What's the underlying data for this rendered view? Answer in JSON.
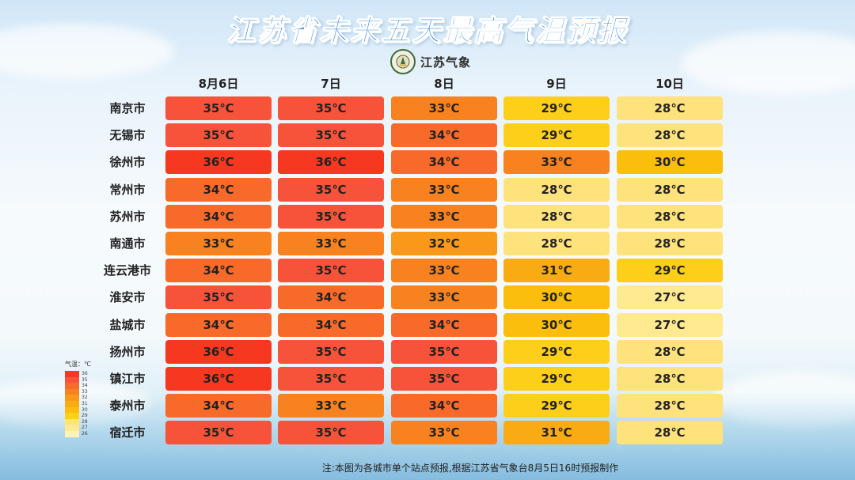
{
  "title": "江苏省未来五天最高气温预报",
  "logo_text": "江苏气象",
  "days": [
    "8月6日",
    "7日",
    "8日",
    "9日",
    "10日"
  ],
  "rows": [
    {
      "city": "南京市",
      "temps": [
        "35℃",
        "35℃",
        "33℃",
        "29℃",
        "28℃"
      ]
    },
    {
      "city": "无锡市",
      "temps": [
        "35℃",
        "35℃",
        "34℃",
        "29℃",
        "28℃"
      ]
    },
    {
      "city": "徐州市",
      "temps": [
        "36℃",
        "36℃",
        "34℃",
        "33℃",
        "30℃"
      ]
    },
    {
      "city": "常州市",
      "temps": [
        "34℃",
        "35℃",
        "33℃",
        "28℃",
        "28℃"
      ]
    },
    {
      "city": "苏州市",
      "temps": [
        "34℃",
        "35℃",
        "33℃",
        "28℃",
        "28℃"
      ]
    },
    {
      "city": "南通市",
      "temps": [
        "33℃",
        "33℃",
        "32℃",
        "28℃",
        "28℃"
      ]
    },
    {
      "city": "连云港市",
      "temps": [
        "34℃",
        "35℃",
        "33℃",
        "31℃",
        "29℃"
      ]
    },
    {
      "city": "淮安市",
      "temps": [
        "35℃",
        "34℃",
        "33℃",
        "30℃",
        "27℃"
      ]
    },
    {
      "city": "盐城市",
      "temps": [
        "34℃",
        "34℃",
        "34℃",
        "30℃",
        "27℃"
      ]
    },
    {
      "city": "扬州市",
      "temps": [
        "36℃",
        "35℃",
        "35℃",
        "29℃",
        "28℃"
      ]
    },
    {
      "city": "镇江市",
      "temps": [
        "36℃",
        "35℃",
        "35℃",
        "29℃",
        "28℃"
      ]
    },
    {
      "city": "泰州市",
      "temps": [
        "34℃",
        "33℃",
        "34℃",
        "29℃",
        "28℃"
      ]
    },
    {
      "city": "宿迁市",
      "temps": [
        "35℃",
        "35℃",
        "33℃",
        "31℃",
        "28℃"
      ]
    }
  ],
  "legend": {
    "title": "气温：℃",
    "levels": [
      {
        "label": "36",
        "color": "#f5381f"
      },
      {
        "label": "35",
        "color": "#f7533a"
      },
      {
        "label": "34",
        "color": "#f86a2a"
      },
      {
        "label": "33",
        "color": "#f7821f"
      },
      {
        "label": "32",
        "color": "#f8991a"
      },
      {
        "label": "31",
        "color": "#f9ab14"
      },
      {
        "label": "30",
        "color": "#fbbe0c"
      },
      {
        "label": "29",
        "color": "#fdcf1a"
      },
      {
        "label": "28",
        "color": "#fee27c"
      },
      {
        "label": "27",
        "color": "#ffe991"
      },
      {
        "label": "26",
        "color": "#fff3b8"
      }
    ]
  },
  "note": "注:本图为各城市单个站点预报,根据江苏省气象台8月5日16时预报制作"
}
